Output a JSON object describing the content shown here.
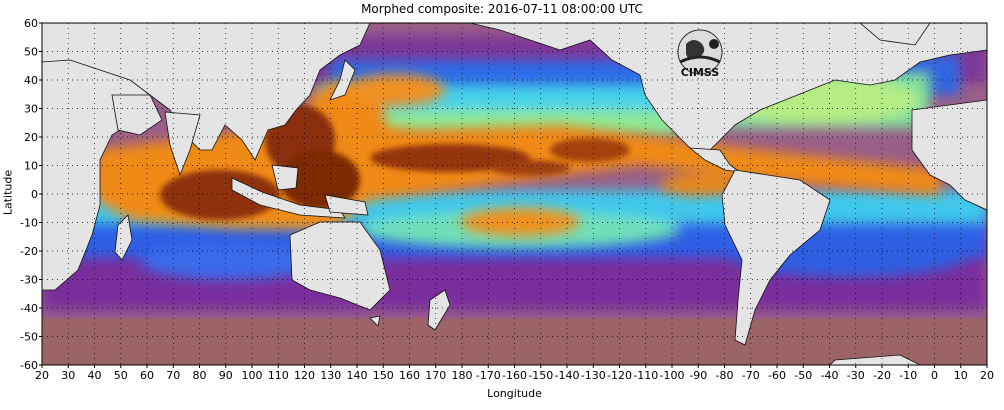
{
  "title": "Morphed composite: 2016-07-11 08:00:00 UTC",
  "axes": {
    "xlabel": "Longitude",
    "ylabel": "Latitude",
    "y_ticks": [
      "60",
      "50",
      "40",
      "30",
      "20",
      "10",
      "0",
      "-10",
      "-20",
      "-30",
      "-40",
      "-50",
      "-60"
    ],
    "x_ticks": [
      "20",
      "30",
      "40",
      "50",
      "60",
      "70",
      "80",
      "90",
      "100",
      "110",
      "120",
      "130",
      "140",
      "150",
      "160",
      "170",
      "180",
      "-170",
      "-160",
      "-150",
      "-140",
      "-130",
      "-120",
      "-110",
      "-100",
      "-90",
      "-80",
      "-70",
      "-60",
      "-50",
      "-40",
      "-30",
      "-20",
      "-10",
      "0",
      "10",
      "20"
    ],
    "xlim": [
      20,
      380
    ],
    "ylim": [
      -60,
      60
    ],
    "grid": true
  },
  "logo": {
    "text": "CIMSS",
    "icon": "cimss-logo-icon"
  },
  "colors": {
    "land": "#e6e6e6",
    "ocean_low": "#9a5a86",
    "ocean_mid_purple": "#7a2aa0",
    "ocean_blue": "#2a62e8",
    "ocean_cyan": "#3fd0ee",
    "ocean_green": "#8ee896",
    "ocean_orange": "#f08a14",
    "ocean_high": "#8a2a06"
  }
}
